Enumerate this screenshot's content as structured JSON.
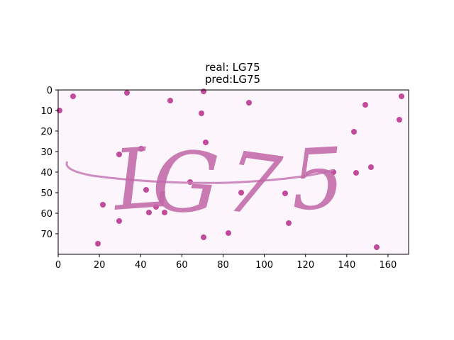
{
  "chart_data": {
    "type": "image",
    "title_lines": [
      "real: LG75",
      "pred:LG75"
    ],
    "xlim": [
      0,
      170
    ],
    "ylim": [
      80,
      0
    ],
    "x_ticks": [
      0,
      20,
      40,
      60,
      80,
      100,
      120,
      140,
      160
    ],
    "y_ticks": [
      0,
      10,
      20,
      30,
      40,
      50,
      60,
      70
    ],
    "background_color": "#fcf6fc",
    "ink_color": "#c26aa8",
    "captcha_text": "LG75"
  }
}
